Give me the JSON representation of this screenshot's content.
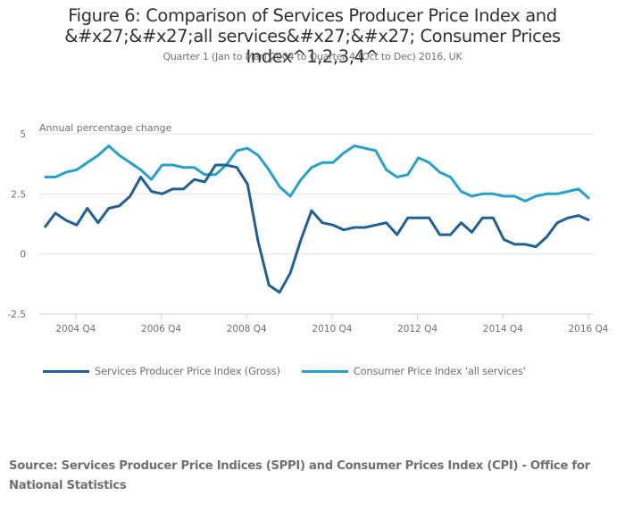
{
  "header": {
    "title": "Figure 6: Comparison of Services Producer Price Index and &#x27;&#x27;all services&#x27;&#x27; Consumer Prices Index^1,2,3,4^",
    "subtitle": "Quarter 1 (Jan to Mar) 2004 to Quarter 4 (Oct to Dec) 2016, UK"
  },
  "footer": {
    "source": "Source: Services Producer Price Indices (SPPI) and Consumer Prices Index (CPI) - Office for National Statistics"
  },
  "chart_data": {
    "type": "line",
    "title": "Figure 6: Comparison of Services Producer Price Index and ''all services'' Consumer Prices Index",
    "subtitle": "Quarter 1 (Jan to Mar) 2004 to Quarter 4 (Oct to Dec) 2016, UK",
    "xlabel": "",
    "ylabel": "Annual percentage change",
    "ylim": [
      -2.5,
      5
    ],
    "yticks": [
      5,
      2.5,
      0,
      -2.5
    ],
    "ytick_labels": [
      "5",
      "2.5",
      "0",
      "-2.5"
    ],
    "xtick_labels": [
      "2004 Q4",
      "2006 Q4",
      "2008 Q4",
      "2010 Q4",
      "2012 Q4",
      "2014 Q4",
      "2016 Q4"
    ],
    "xtick_indices": [
      3,
      11,
      19,
      27,
      35,
      43,
      51
    ],
    "grid": true,
    "legend_position": "bottom",
    "x": [
      "2004 Q1",
      "2004 Q2",
      "2004 Q3",
      "2004 Q4",
      "2005 Q1",
      "2005 Q2",
      "2005 Q3",
      "2005 Q4",
      "2006 Q1",
      "2006 Q2",
      "2006 Q3",
      "2006 Q4",
      "2007 Q1",
      "2007 Q2",
      "2007 Q3",
      "2007 Q4",
      "2008 Q1",
      "2008 Q2",
      "2008 Q3",
      "2008 Q4",
      "2009 Q1",
      "2009 Q2",
      "2009 Q3",
      "2009 Q4",
      "2010 Q1",
      "2010 Q2",
      "2010 Q3",
      "2010 Q4",
      "2011 Q1",
      "2011 Q2",
      "2011 Q3",
      "2011 Q4",
      "2012 Q1",
      "2012 Q2",
      "2012 Q3",
      "2012 Q4",
      "2013 Q1",
      "2013 Q2",
      "2013 Q3",
      "2013 Q4",
      "2014 Q1",
      "2014 Q2",
      "2014 Q3",
      "2014 Q4",
      "2015 Q1",
      "2015 Q2",
      "2015 Q3",
      "2015 Q4",
      "2016 Q1",
      "2016 Q2",
      "2016 Q3",
      "2016 Q4"
    ],
    "series": [
      {
        "name": "Services Producer Price Index (Gross)",
        "color": "#206095",
        "values": [
          1.1,
          1.7,
          1.4,
          1.2,
          1.9,
          1.3,
          1.9,
          2.0,
          2.4,
          3.2,
          2.6,
          2.5,
          2.7,
          2.7,
          3.1,
          3.0,
          3.7,
          3.7,
          3.6,
          2.9,
          0.5,
          -1.3,
          -1.6,
          -0.8,
          0.6,
          1.8,
          1.3,
          1.2,
          1.0,
          1.1,
          1.1,
          1.2,
          1.3,
          0.8,
          1.5,
          1.5,
          1.5,
          0.8,
          0.8,
          1.3,
          0.9,
          1.5,
          1.5,
          0.6,
          0.4,
          0.4,
          0.3,
          0.7,
          1.3,
          1.5,
          1.6,
          1.4
        ]
      },
      {
        "name": "Consumer Price Index 'all services'",
        "color": "#27a0cc",
        "values": [
          3.2,
          3.2,
          3.4,
          3.5,
          3.8,
          4.1,
          4.5,
          4.1,
          3.8,
          3.5,
          3.1,
          3.7,
          3.7,
          3.6,
          3.6,
          3.3,
          3.3,
          3.7,
          4.3,
          4.4,
          4.1,
          3.5,
          2.8,
          2.4,
          3.1,
          3.6,
          3.8,
          3.8,
          4.2,
          4.5,
          4.4,
          4.3,
          3.5,
          3.2,
          3.3,
          4.0,
          3.8,
          3.4,
          3.2,
          2.6,
          2.4,
          2.5,
          2.5,
          2.4,
          2.4,
          2.2,
          2.4,
          2.5,
          2.5,
          2.6,
          2.7,
          2.3
        ]
      }
    ]
  }
}
